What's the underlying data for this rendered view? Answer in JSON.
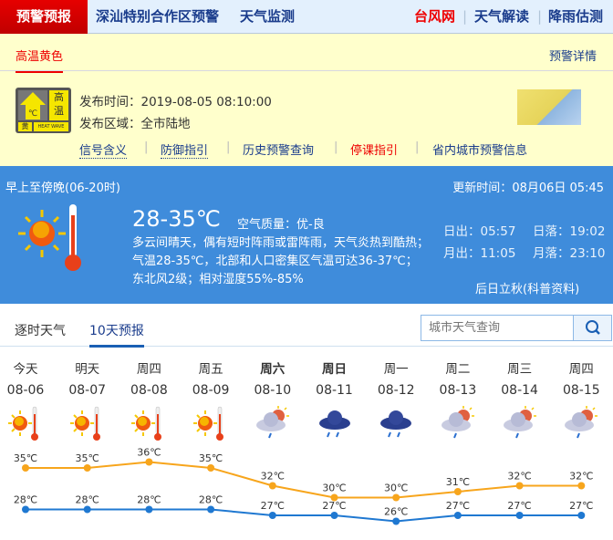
{
  "nav": {
    "brand": "预警预报",
    "links": [
      "深汕特别合作区预警",
      "天气监测"
    ],
    "right": [
      "台风网",
      "天气解读",
      "降雨估测"
    ]
  },
  "alert": {
    "tab": "高温黄色",
    "detail": "预警详情",
    "badge": {
      "top": "高温",
      "level": "黄",
      "en": "HEAT WAVE",
      "unit": "℃"
    },
    "time_label": "发布时间：",
    "time": "2019-08-05 08:10:00",
    "area_label": "发布区域：",
    "area": "全市陆地",
    "links": [
      "信号含义",
      "防御指引",
      "历史预警查询",
      "停课指引",
      "省内城市预警信息"
    ]
  },
  "today": {
    "period": "早上至傍晚(06-20时)",
    "update_label": "更新时间：",
    "update": "08月06日 05:45",
    "temp": "28-35℃",
    "aqi_label": "空气质量：",
    "aqi": "优-良",
    "desc": "多云间晴天，偶有短时阵雨或雷阵雨，天气炎热到酷热；气温28-35℃，北部和人口密集区气温可达36-37℃；东北风2级；相对湿度55%-85%",
    "sunrise": "日出：05:57",
    "sunset": "日落：19:02",
    "moonrise": "月出：11:05",
    "moonset": "月落：23:10",
    "note": "后日立秋(科普资料)"
  },
  "tabs": [
    "逐时天气",
    "10天预报"
  ],
  "search": {
    "placeholder": "城市天气查询"
  },
  "colors": {
    "high": "#f7a51c",
    "low": "#1f78d1",
    "accent": "#3f8cdb"
  },
  "forecast": {
    "days": [
      {
        "name": "今天",
        "date": "08-06",
        "icon": "sunny-hot",
        "high": 35,
        "low": 28
      },
      {
        "name": "明天",
        "date": "08-07",
        "icon": "sunny-hot",
        "high": 35,
        "low": 28
      },
      {
        "name": "周四",
        "date": "08-08",
        "icon": "sunny-hot",
        "high": 36,
        "low": 28
      },
      {
        "name": "周五",
        "date": "08-09",
        "icon": "sunny-hot",
        "high": 35,
        "low": 28
      },
      {
        "name": "周六",
        "date": "08-10",
        "icon": "partly-cloudy-shower",
        "high": 32,
        "low": 27,
        "weekend": true
      },
      {
        "name": "周日",
        "date": "08-11",
        "icon": "thunder-shower",
        "high": 30,
        "low": 27,
        "weekend": true
      },
      {
        "name": "周一",
        "date": "08-12",
        "icon": "thunder-shower",
        "high": 30,
        "low": 26
      },
      {
        "name": "周二",
        "date": "08-13",
        "icon": "partly-cloudy-shower",
        "high": 31,
        "low": 27
      },
      {
        "name": "周三",
        "date": "08-14",
        "icon": "partly-cloudy-shower",
        "high": 32,
        "low": 27
      },
      {
        "name": "周四",
        "date": "08-15",
        "icon": "partly-cloudy-shower",
        "high": 32,
        "low": 27
      }
    ]
  }
}
